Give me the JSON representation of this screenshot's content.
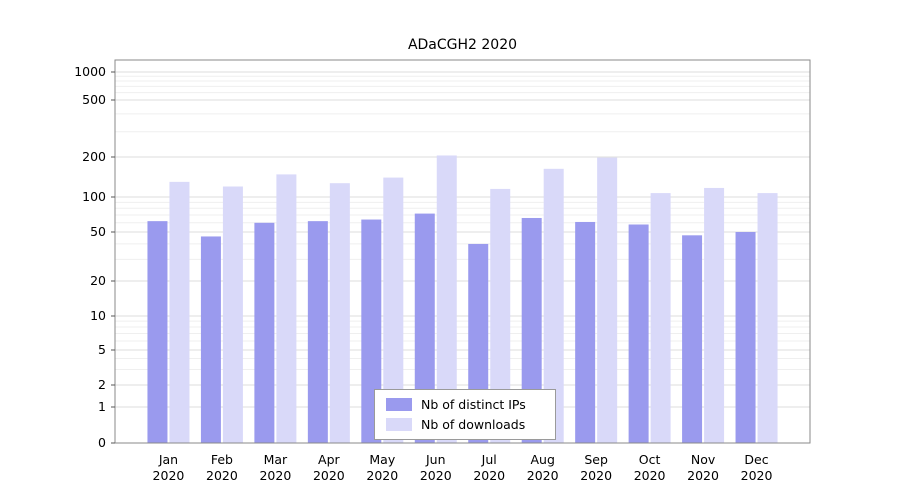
{
  "chart_data": {
    "type": "bar",
    "title": "ADaCGH2 2020",
    "categories": [
      "Jan",
      "Feb",
      "Mar",
      "Apr",
      "May",
      "Jun",
      "Jul",
      "Aug",
      "Sep",
      "Oct",
      "Nov",
      "Dec"
    ],
    "category_year": "2020",
    "series": [
      {
        "name": "Nb of distinct IPs",
        "color": "#9a9aee",
        "values": [
          62,
          46,
          60,
          62,
          64,
          72,
          40,
          66,
          61,
          58,
          47,
          50
        ]
      },
      {
        "name": "Nb of downloads",
        "color": "#d9d9f9",
        "values": [
          130,
          120,
          148,
          127,
          140,
          205,
          115,
          163,
          198,
          107,
          117,
          107
        ]
      }
    ],
    "yticks": [
      0,
      1,
      2,
      5,
      10,
      20,
      50,
      100,
      200,
      500,
      1000
    ],
    "yscale": "log-like",
    "ylim": [
      0,
      1000
    ],
    "grid": true,
    "legend_position": "bottom-center",
    "xlabel": "",
    "ylabel": ""
  }
}
